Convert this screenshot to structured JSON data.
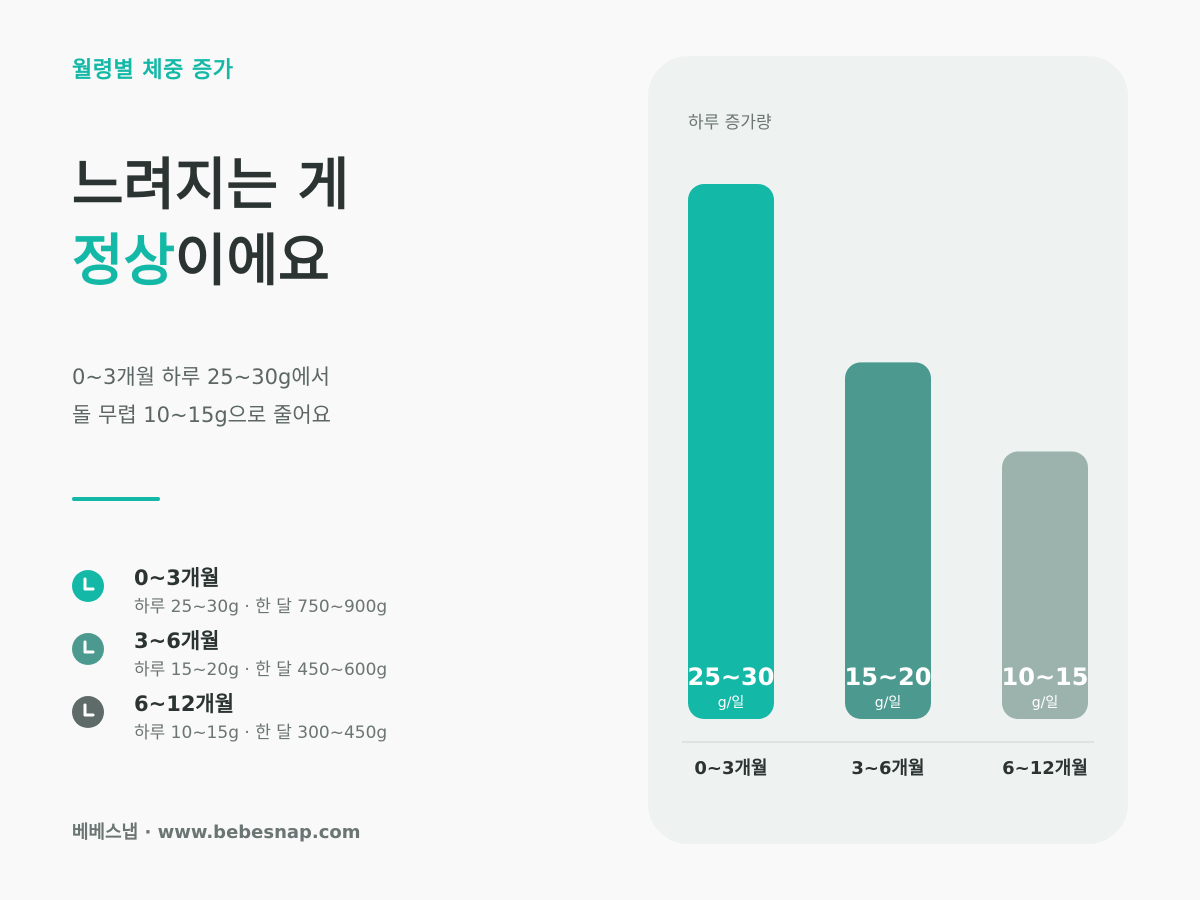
{
  "eyebrow": "월령별 체중 증가",
  "headline": {
    "line1": "느려지는 게",
    "accent": "정상",
    "line2_rest": "이에요"
  },
  "description": {
    "line1": "0~3개월 하루 25~30g에서",
    "line2": "돌 무렵 10~15g으로 줄어요"
  },
  "legend": [
    {
      "title": "0~3개월",
      "sub": "하루 25~30g · 한 달 750~900g",
      "icon": "clock-icon",
      "color": "#14b8a6"
    },
    {
      "title": "3~6개월",
      "sub": "하루 15~20g · 한 달 450~600g",
      "icon": "clock-icon",
      "color": "#4c9a8f"
    },
    {
      "title": "6~12개월",
      "sub": "하루 10~15g · 한 달 300~450g",
      "icon": "clock-icon",
      "color": "#5f6b69"
    }
  ],
  "footer": "베베스냅 · www.bebesnap.com",
  "chart_data": {
    "type": "bar",
    "ylabel": "하루 증가량",
    "categories": [
      "0~3개월",
      "3~6개월",
      "6~12개월"
    ],
    "ranges": [
      [
        25,
        30
      ],
      [
        15,
        20
      ],
      [
        10,
        15
      ]
    ],
    "value_labels": [
      "25~30",
      "15~20",
      "10~15"
    ],
    "unit_label": "g/일",
    "colors": [
      "#14b8a6",
      "#4c9a8f",
      "#9bb3ac"
    ],
    "ylim": [
      0,
      30
    ]
  }
}
